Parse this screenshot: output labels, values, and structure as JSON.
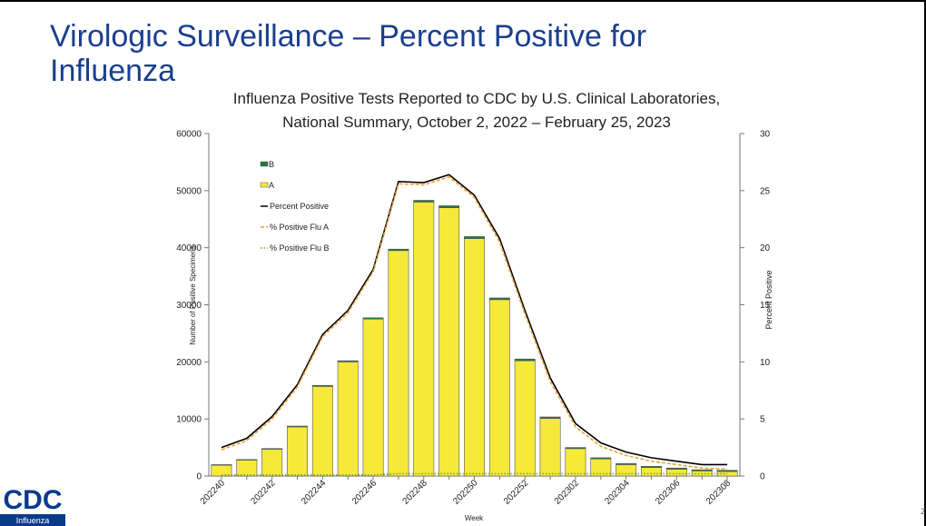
{
  "slide_title": [
    "Virologic Surveillance – Percent Positive for",
    "Influenza"
  ],
  "logo": {
    "mark": "CDC",
    "caption": "Influenza"
  },
  "page_number": "2",
  "chart_data": {
    "type": "bar",
    "title": [
      "Influenza Positive Tests Reported to CDC by U.S. Clinical Laboratories,",
      "National Summary, October 2, 2022 – February 25, 2023"
    ],
    "x_label": "Week",
    "y_label": "Number of Positive Specimens",
    "y2_label": "Percent Positive",
    "categories": [
      "202240",
      null,
      "202242",
      null,
      "202244",
      null,
      "202246",
      null,
      "202248",
      null,
      "202250",
      null,
      "202252",
      null,
      "202302",
      null,
      "202304",
      null,
      "202306",
      null,
      "202308"
    ],
    "stacked": true,
    "series": [
      {
        "name": "A",
        "color": "#f6e93a",
        "values": [
          1900,
          2800,
          4700,
          8600,
          15700,
          20000,
          27500,
          39500,
          48000,
          47000,
          41600,
          30900,
          20200,
          10100,
          4800,
          3000,
          2000,
          1500,
          1200,
          900,
          800
        ]
      },
      {
        "name": "B",
        "color": "#1e7a3c",
        "values": [
          100,
          100,
          120,
          150,
          180,
          200,
          220,
          250,
          300,
          350,
          350,
          300,
          300,
          250,
          200,
          200,
          200,
          200,
          200,
          200,
          200
        ]
      }
    ],
    "line_series": [
      {
        "name": "Percent Positive",
        "color": "#000000",
        "dash": "solid",
        "axis": "y2",
        "values": [
          2.5,
          3.3,
          5.2,
          8.0,
          12.4,
          14.5,
          18.1,
          25.8,
          25.7,
          26.4,
          24.6,
          20.8,
          14.5,
          8.6,
          4.6,
          2.9,
          2.1,
          1.6,
          1.3,
          1.0,
          1.0
        ]
      },
      {
        "name": "% Positive Flu A",
        "color": "#e8a33a",
        "dash": "dashed",
        "axis": "y2",
        "values": [
          2.3,
          3.1,
          5.0,
          7.8,
          12.2,
          14.3,
          17.9,
          25.6,
          25.5,
          26.2,
          24.4,
          20.5,
          14.2,
          8.3,
          4.3,
          2.6,
          1.8,
          1.3,
          1.0,
          0.7,
          0.6
        ]
      },
      {
        "name": "% Positive Flu B",
        "color": "#7aa33a",
        "dash": "dotted",
        "axis": "y2",
        "values": [
          0.1,
          0.1,
          0.1,
          0.1,
          0.1,
          0.1,
          0.1,
          0.2,
          0.2,
          0.2,
          0.2,
          0.2,
          0.2,
          0.2,
          0.2,
          0.2,
          0.2,
          0.2,
          0.2,
          0.2,
          0.2
        ]
      }
    ],
    "ylim": [
      0,
      60000
    ],
    "yticks": [
      0,
      10000,
      20000,
      30000,
      40000,
      50000,
      60000
    ],
    "y2lim": [
      0,
      30
    ],
    "y2ticks": [
      0,
      5,
      10,
      15,
      20,
      25,
      30
    ],
    "legend": "upper left"
  }
}
